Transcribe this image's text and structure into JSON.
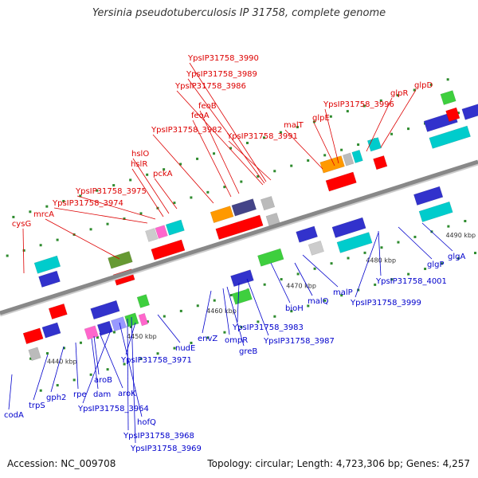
{
  "title": "Yersinia pseudotuberculosis IP 31758, complete genome",
  "footer": {
    "accession": "Accession: NC_009708",
    "summary": "Topology: circular; Length: 4,723,306 bp; Genes: 4,257"
  },
  "colors": {
    "top_label": "#dd0000",
    "bottom_label": "#0000cc",
    "backbone": "#888888",
    "tick": "#2e8b2e"
  },
  "scale": {
    "start_kbp": 4438,
    "end_kbp": 4496,
    "labels": [
      "4440 kbp",
      "4450 kbp",
      "4460 kbp",
      "4470 kbp",
      "4480 kbp",
      "4490 kbp"
    ]
  },
  "top_genes": [
    {
      "name": "cysG"
    },
    {
      "name": "mrcA"
    },
    {
      "name": "YpsIP31758_3974"
    },
    {
      "name": "YpsIP31758_3975"
    },
    {
      "name": "hslR"
    },
    {
      "name": "hslO"
    },
    {
      "name": "pckA"
    },
    {
      "name": "YpsIP31758_3982"
    },
    {
      "name": "feoA"
    },
    {
      "name": "feoB"
    },
    {
      "name": "YpsIP31758_3986"
    },
    {
      "name": "YpsIP31758_3989"
    },
    {
      "name": "YpsIP31758_3990"
    },
    {
      "name": "YpsIP31758_3991"
    },
    {
      "name": "malT"
    },
    {
      "name": "glpE"
    },
    {
      "name": "YpsIP31758_3996"
    },
    {
      "name": "glpR"
    },
    {
      "name": "glpD"
    }
  ],
  "bottom_genes": [
    {
      "name": "codA"
    },
    {
      "name": "trpS"
    },
    {
      "name": "gph2"
    },
    {
      "name": "rpe"
    },
    {
      "name": "dam"
    },
    {
      "name": "aroB"
    },
    {
      "name": "aroK"
    },
    {
      "name": "YpsIP31758_3964"
    },
    {
      "name": "hofQ"
    },
    {
      "name": "YpsIP31758_3968"
    },
    {
      "name": "YpsIP31758_3969"
    },
    {
      "name": "YpsIP31758_3971"
    },
    {
      "name": "nudE"
    },
    {
      "name": "envZ"
    },
    {
      "name": "ompR"
    },
    {
      "name": "greB"
    },
    {
      "name": "YpsIP31758_3983"
    },
    {
      "name": "YpsIP31758_3987"
    },
    {
      "name": "bioH"
    },
    {
      "name": "malQ"
    },
    {
      "name": "malP"
    },
    {
      "name": "YpsIP31758_3999"
    },
    {
      "name": "YpsIP31758_4001"
    },
    {
      "name": "glgP"
    },
    {
      "name": "glgA"
    }
  ]
}
